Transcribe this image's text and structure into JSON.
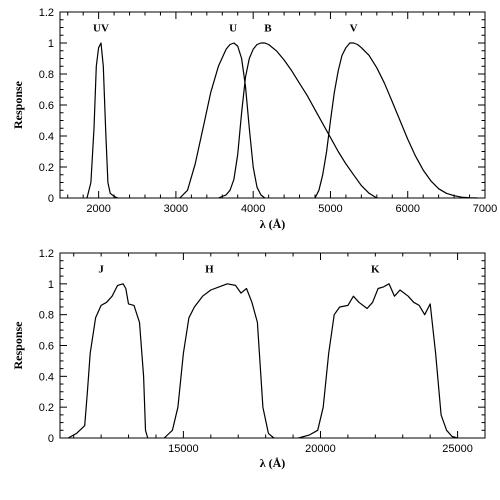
{
  "chart_data": [
    {
      "type": "line",
      "xlabel": "λ (Å)",
      "ylabel": "Response",
      "xlim": [
        1500,
        7000
      ],
      "ylim": [
        0,
        1.2
      ],
      "xticks": [
        2000,
        3000,
        4000,
        5000,
        6000,
        7000
      ],
      "xtick_labels": [
        "2000",
        "3000",
        "4000",
        "5000",
        "6000",
        "7000"
      ],
      "yticks": [
        0,
        0.2,
        0.4,
        0.6,
        0.8,
        1,
        1.2
      ],
      "ytick_labels": [
        "0",
        "0.2",
        "0.4",
        "0.6",
        "0.8",
        "1",
        "1.2"
      ],
      "series": [
        {
          "name": "UV",
          "label_at": [
            2030,
            1.1
          ],
          "x": [
            1850,
            1900,
            1940,
            1970,
            2000,
            2030,
            2060,
            2090,
            2120,
            2150,
            2200,
            2250
          ],
          "y": [
            0,
            0.1,
            0.45,
            0.85,
            0.97,
            1.0,
            0.85,
            0.45,
            0.1,
            0.03,
            0.01,
            0
          ]
        },
        {
          "name": "U",
          "label_at": [
            3740,
            1.1
          ],
          "x": [
            3050,
            3150,
            3250,
            3350,
            3450,
            3550,
            3650,
            3700,
            3750,
            3800,
            3850,
            3900,
            3950,
            4000,
            4050,
            4100,
            4150
          ],
          "y": [
            0,
            0.05,
            0.22,
            0.45,
            0.68,
            0.85,
            0.96,
            0.99,
            1.0,
            0.98,
            0.9,
            0.72,
            0.45,
            0.2,
            0.07,
            0.02,
            0
          ]
        },
        {
          "name": "B",
          "label_at": [
            4190,
            1.1
          ],
          "x": [
            3550,
            3650,
            3700,
            3750,
            3800,
            3850,
            3900,
            3950,
            4000,
            4050,
            4100,
            4150,
            4200,
            4300,
            4400,
            4500,
            4600,
            4700,
            4800,
            4900,
            5000,
            5100,
            5200,
            5300,
            5400,
            5500,
            5600
          ],
          "y": [
            0,
            0.02,
            0.05,
            0.12,
            0.28,
            0.55,
            0.78,
            0.9,
            0.96,
            0.99,
            1.0,
            1.0,
            0.99,
            0.95,
            0.89,
            0.82,
            0.74,
            0.66,
            0.57,
            0.48,
            0.39,
            0.3,
            0.22,
            0.15,
            0.08,
            0.03,
            0
          ]
        },
        {
          "name": "V",
          "label_at": [
            5300,
            1.1
          ],
          "x": [
            4800,
            4850,
            4900,
            4950,
            5000,
            5050,
            5100,
            5150,
            5200,
            5250,
            5300,
            5350,
            5400,
            5500,
            5600,
            5700,
            5800,
            5900,
            6000,
            6100,
            6200,
            6300,
            6400,
            6500,
            6600,
            6700,
            6800,
            6900
          ],
          "y": [
            0,
            0.05,
            0.15,
            0.3,
            0.5,
            0.68,
            0.82,
            0.92,
            0.97,
            1.0,
            1.0,
            0.99,
            0.97,
            0.92,
            0.84,
            0.74,
            0.62,
            0.5,
            0.38,
            0.27,
            0.18,
            0.11,
            0.06,
            0.03,
            0.015,
            0.005,
            0.002,
            0
          ]
        }
      ]
    },
    {
      "type": "line",
      "xlabel": "λ (Å)",
      "ylabel": "Response",
      "xlim": [
        10500,
        26000
      ],
      "ylim": [
        0,
        1.2
      ],
      "xticks": [
        15000,
        20000,
        25000
      ],
      "xtick_labels": [
        "15000",
        "20000",
        "25000"
      ],
      "yticks": [
        0,
        0.2,
        0.4,
        0.6,
        0.8,
        1,
        1.2
      ],
      "ytick_labels": [
        "0",
        "0.2",
        "0.4",
        "0.6",
        "0.8",
        "1",
        "1.2"
      ],
      "series": [
        {
          "name": "J",
          "label_at": [
            12000,
            1.1
          ],
          "x": [
            10800,
            11100,
            11400,
            11500,
            11600,
            11800,
            12000,
            12200,
            12400,
            12600,
            12800,
            12900,
            13000,
            13200,
            13400,
            13550,
            13620,
            13700
          ],
          "y": [
            0,
            0.03,
            0.08,
            0.3,
            0.55,
            0.78,
            0.86,
            0.88,
            0.92,
            0.99,
            1.0,
            0.97,
            0.87,
            0.86,
            0.75,
            0.4,
            0.05,
            0
          ]
        },
        {
          "name": "H",
          "label_at": [
            15950,
            1.1
          ],
          "x": [
            14300,
            14600,
            14800,
            15000,
            15200,
            15400,
            15700,
            16000,
            16300,
            16600,
            16900,
            17100,
            17300,
            17500,
            17700,
            17900,
            18100,
            18300
          ],
          "y": [
            0,
            0.05,
            0.2,
            0.55,
            0.78,
            0.85,
            0.92,
            0.96,
            0.98,
            1.0,
            0.99,
            0.94,
            0.97,
            0.88,
            0.75,
            0.2,
            0.03,
            0
          ]
        },
        {
          "name": "K",
          "label_at": [
            22000,
            1.1
          ],
          "x": [
            19200,
            19600,
            19900,
            20100,
            20300,
            20500,
            20700,
            21000,
            21200,
            21400,
            21700,
            21900,
            22100,
            22300,
            22500,
            22700,
            22900,
            23200,
            23400,
            23600,
            23800,
            24000,
            24200,
            24400,
            24600,
            24800,
            25000
          ],
          "y": [
            0,
            0.02,
            0.05,
            0.2,
            0.55,
            0.8,
            0.85,
            0.86,
            0.92,
            0.88,
            0.84,
            0.88,
            0.97,
            0.98,
            1.0,
            0.92,
            0.96,
            0.92,
            0.88,
            0.86,
            0.8,
            0.87,
            0.55,
            0.15,
            0.05,
            0.01,
            0
          ]
        }
      ]
    }
  ]
}
